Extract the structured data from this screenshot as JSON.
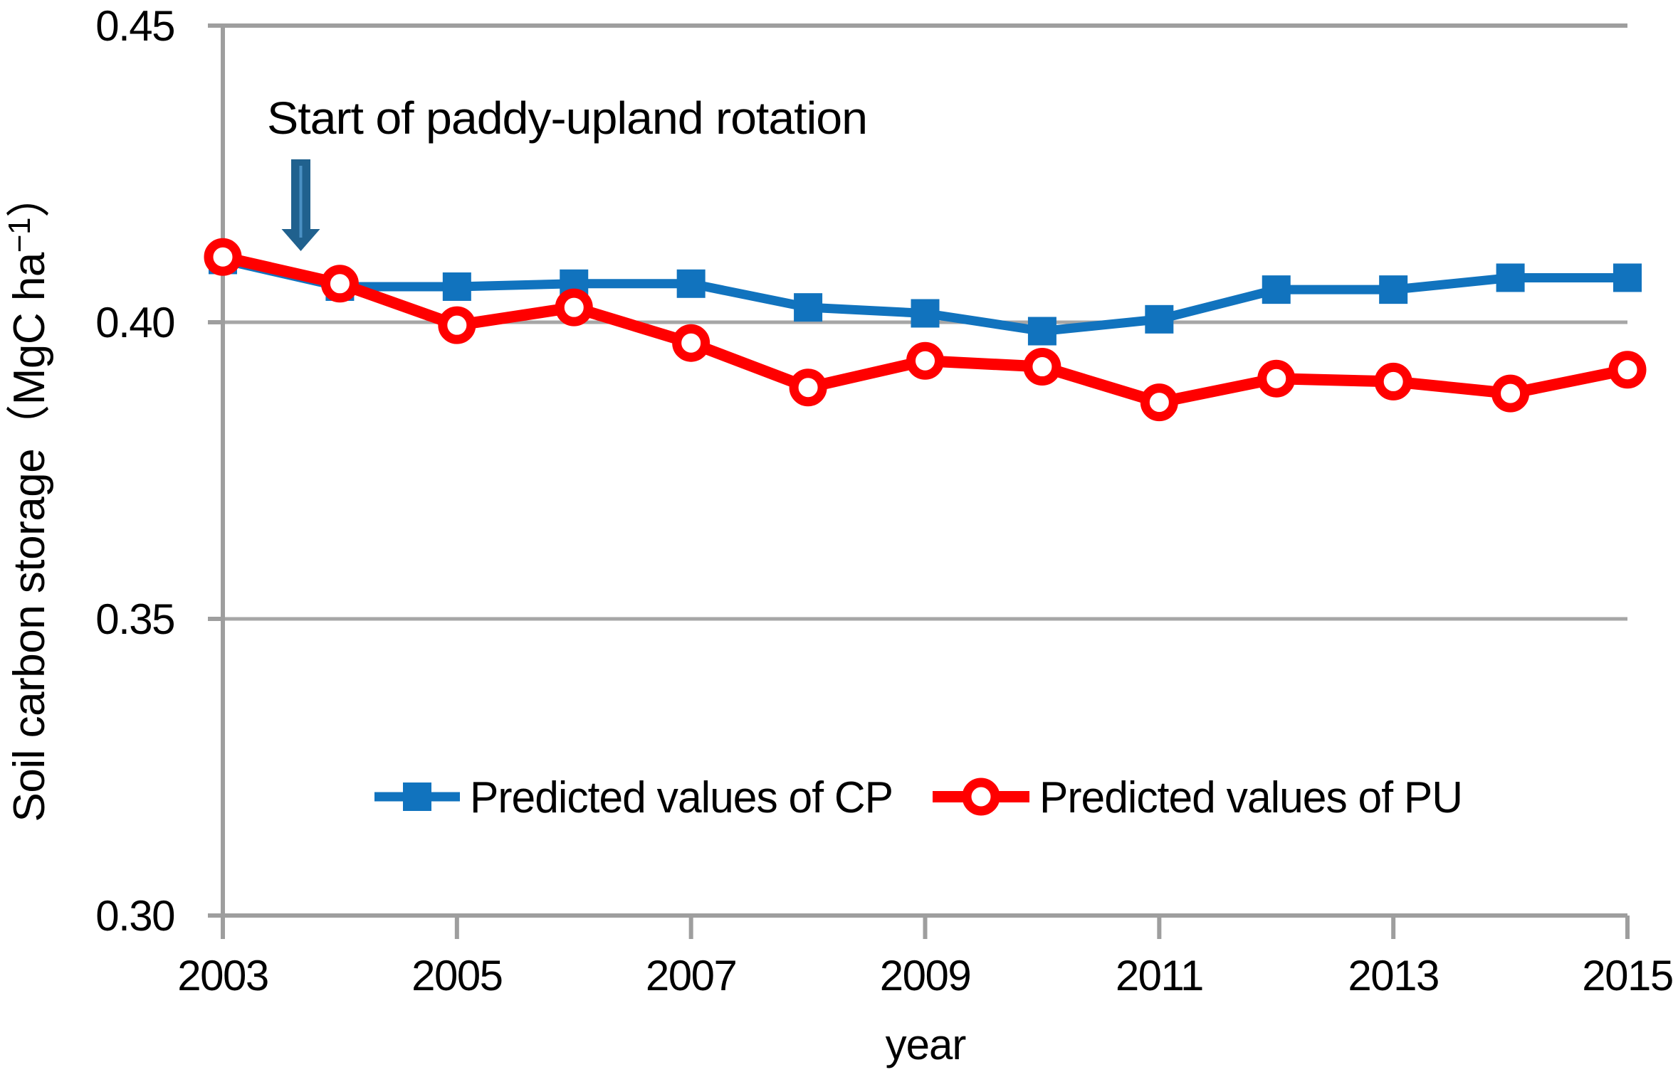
{
  "colors": {
    "cp_blue": "#1173be",
    "pu_red": "#ff0000",
    "arrow_blue": "#20618e",
    "arrow_inner_blue": "#4a90c4",
    "grid_gray": "#a6a6a6",
    "axis_gray": "#9e9e9e",
    "text_black": "#000000",
    "background": "#ffffff"
  },
  "chart_data": {
    "type": "line",
    "title": "",
    "xlabel": "year",
    "ylabel": "Soil carbon storage（MgC ha⁻¹）",
    "ylabel_parts": {
      "pre": "Soil carbon storage（MgC  ha",
      "sup": "−1",
      "post": "）"
    },
    "x": [
      2003,
      2004,
      2005,
      2006,
      2007,
      2008,
      2009,
      2010,
      2011,
      2012,
      2013,
      2014,
      2015
    ],
    "xlim": [
      2003,
      2015
    ],
    "ylim": [
      0.3,
      0.45
    ],
    "grid": "horizontal-major",
    "legend_position": "inside-bottom-center",
    "x_ticks": [
      {
        "value": 2003,
        "label": "2003"
      },
      {
        "value": 2005,
        "label": "2005"
      },
      {
        "value": 2007,
        "label": "2007"
      },
      {
        "value": 2009,
        "label": "2009"
      },
      {
        "value": 2011,
        "label": "2011"
      },
      {
        "value": 2013,
        "label": "2013"
      },
      {
        "value": 2015,
        "label": "2015"
      }
    ],
    "y_ticks": [
      {
        "value": 0.45,
        "label": "0.45",
        "line": "axis"
      },
      {
        "value": 0.4,
        "label": "0.40",
        "line": "grid"
      },
      {
        "value": 0.35,
        "label": "0.35",
        "line": "grid"
      },
      {
        "value": 0.3,
        "label": "0.30",
        "line": "axis"
      }
    ],
    "series": [
      {
        "id": "cp",
        "name": "Predicted values of CP",
        "color": "#1173be",
        "marker": "filled-square",
        "line_width": 13,
        "values": [
          0.4105,
          0.406,
          0.406,
          0.4065,
          0.4065,
          0.4025,
          0.4015,
          0.3985,
          0.4005,
          0.4055,
          0.4055,
          0.4075,
          0.4075
        ]
      },
      {
        "id": "pu",
        "name": "Predicted values of PU",
        "color": "#ff0000",
        "marker": "open-circle",
        "line_width": 16,
        "values": [
          0.411,
          0.4065,
          0.3995,
          0.4025,
          0.3965,
          0.389,
          0.3935,
          0.3925,
          0.3865,
          0.3905,
          0.39,
          0.388,
          0.392
        ]
      }
    ],
    "annotation": {
      "text": "Start of paddy-upland rotation",
      "arrow_points_to_x": 2003.7,
      "arrow_points_to_y": 0.413
    }
  }
}
